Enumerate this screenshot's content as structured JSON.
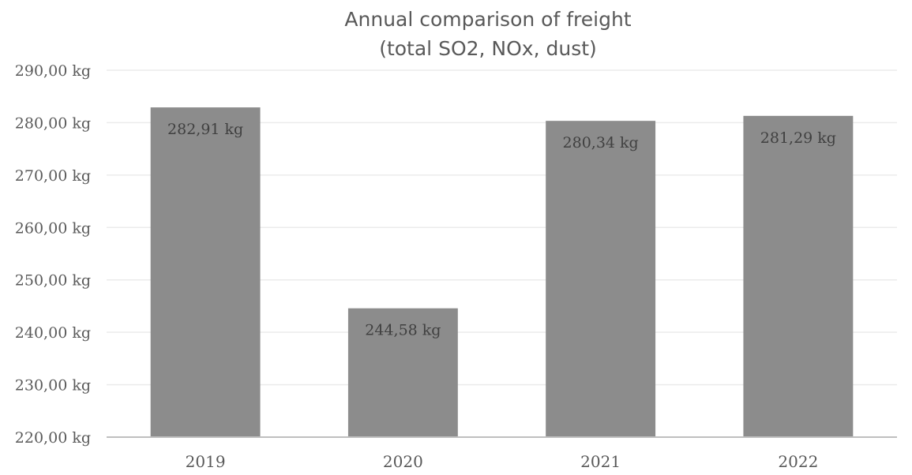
{
  "chart_data": {
    "type": "bar",
    "title": [
      "Annual comparison of freight",
      "(total SO2, NOx, dust)"
    ],
    "categories": [
      "2019",
      "2020",
      "2021",
      "2022"
    ],
    "values": [
      282.91,
      244.58,
      280.34,
      281.29
    ],
    "data_labels": [
      "282,91 kg",
      "244,58 kg",
      "280,34 kg",
      "281,29 kg"
    ],
    "xlabel": "",
    "ylabel": "",
    "ylim": [
      220,
      290
    ],
    "yticks": [
      220,
      230,
      240,
      250,
      260,
      270,
      280,
      290
    ],
    "ytick_labels": [
      "220,00 kg",
      "230,00 kg",
      "240,00 kg",
      "250,00 kg",
      "260,00 kg",
      "270,00 kg",
      "280,00 kg",
      "290,00 kg"
    ],
    "grid": true,
    "legend": false,
    "bar_color": "#8c8c8c",
    "grid_color": "#ebebeb",
    "axis_color": "#bfbfbf",
    "text_color": "#595959"
  }
}
